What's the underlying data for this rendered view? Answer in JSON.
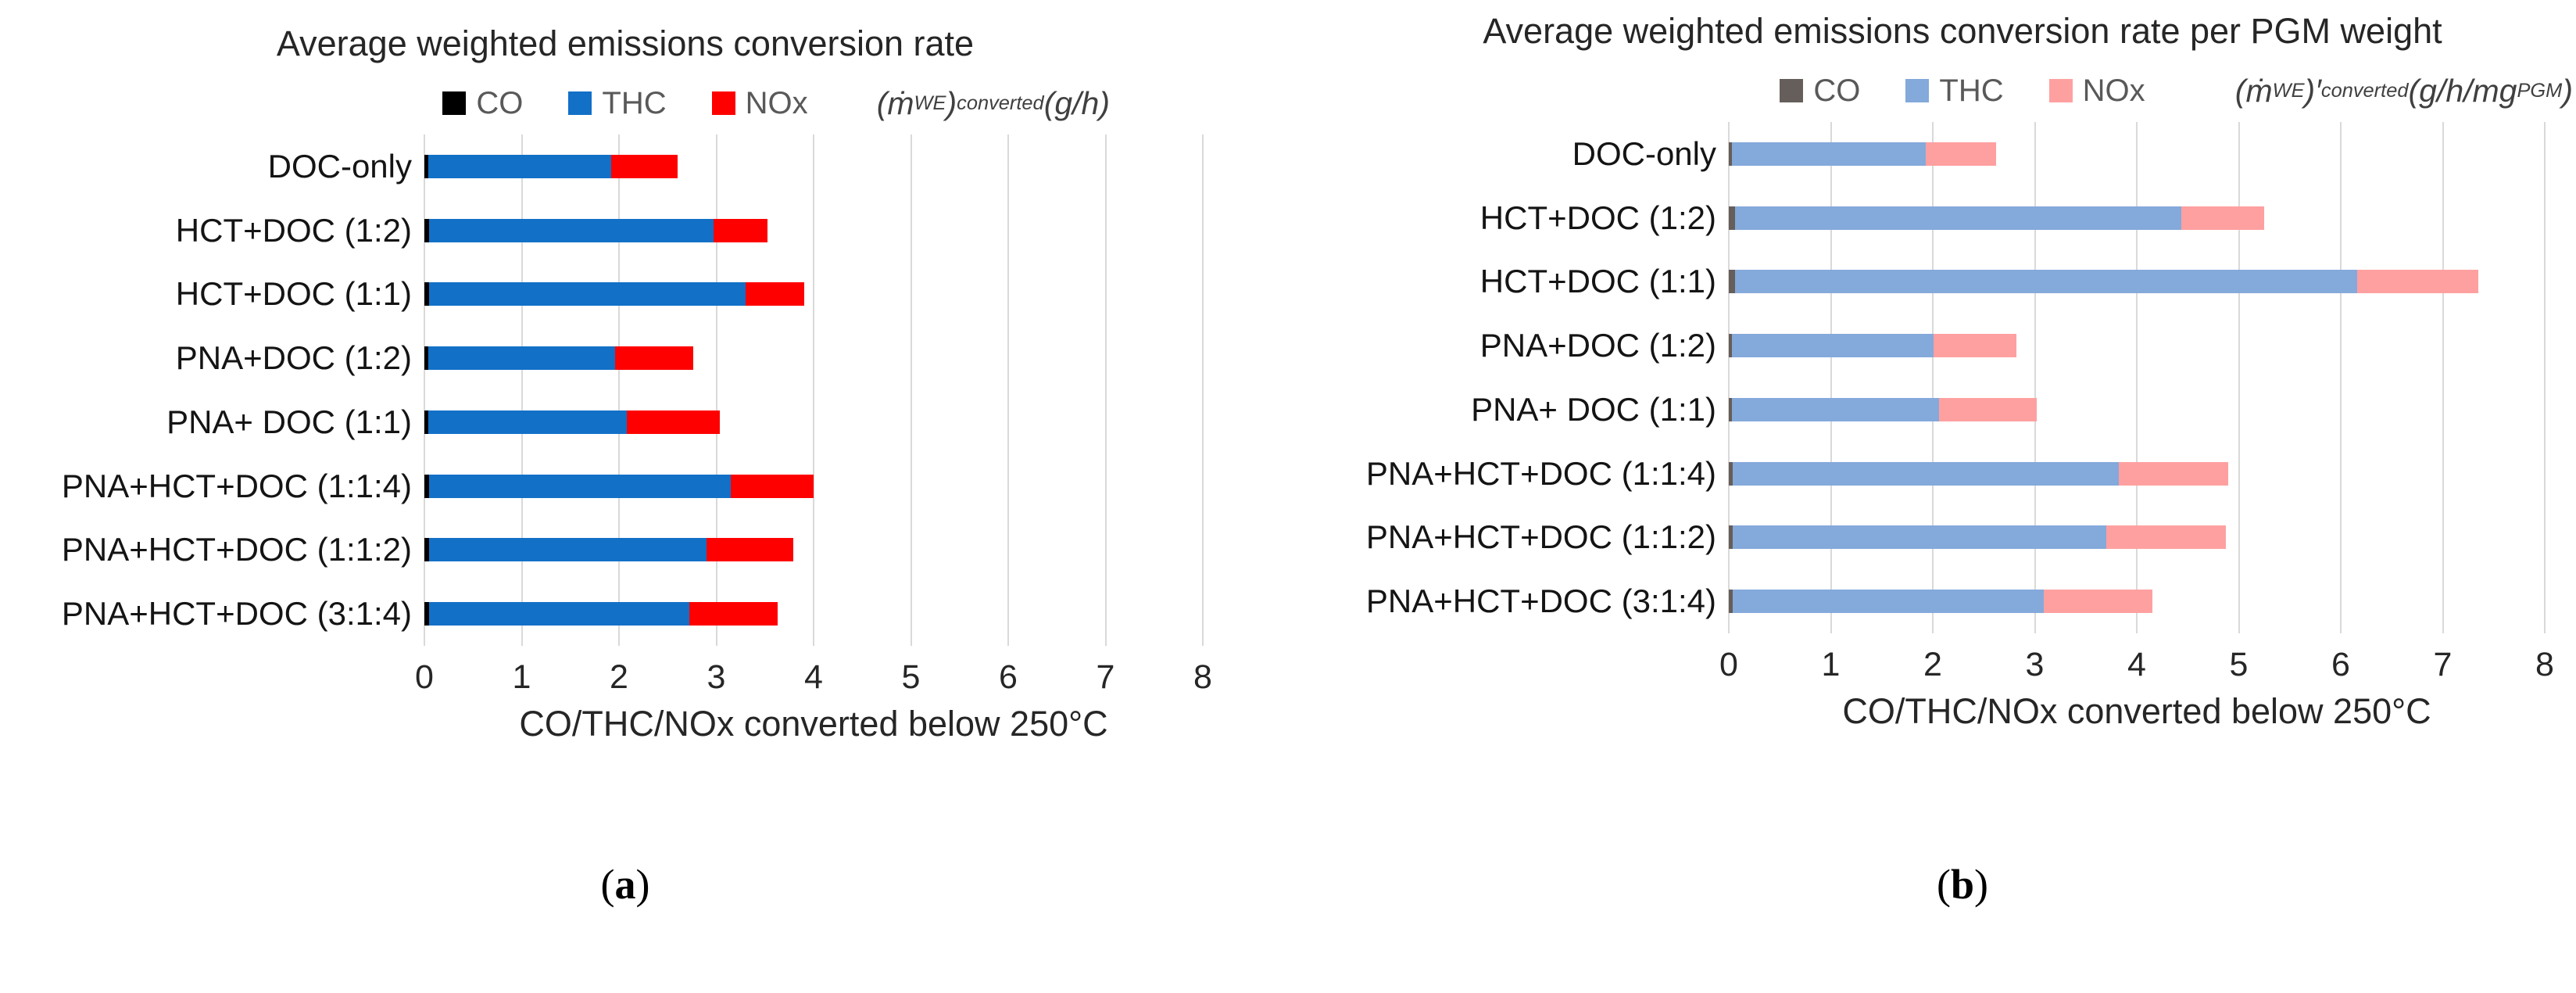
{
  "figure": {
    "captions": [
      {
        "open": "(",
        "letter": "a",
        "close": ")"
      },
      {
        "open": "(",
        "letter": "b",
        "close": ")"
      }
    ]
  },
  "charts": [
    {
      "title": "Average weighted emissions conversion rate",
      "legend": [
        {
          "label": "CO",
          "color": "#000000"
        },
        {
          "label": "THC",
          "color": "#1270c7"
        },
        {
          "label": "NOx",
          "color": "#ff0000"
        }
      ],
      "units_rich": [
        {
          "t": "("
        },
        {
          "t": "ṁ"
        },
        {
          "t": "WE",
          "sub": true
        },
        {
          "t": ")"
        },
        {
          "t": "converted",
          "sub": true
        },
        {
          "t": " (g/h)"
        }
      ],
      "units_plain": "(ṁWE)converted (g/h)",
      "xlabel": "CO/THC/NOx converted below 250°C",
      "chart_data": {
        "type": "bar",
        "orientation": "horizontal",
        "stacked": true,
        "title": "Average weighted emissions conversion rate",
        "categories": [
          "DOC-only",
          "HCT+DOC (1:2)",
          "HCT+DOC (1:1)",
          "PNA+DOC (1:2)",
          "PNA+ DOC (1:1)",
          "PNA+HCT+DOC (1:1:4)",
          "PNA+HCT+DOC (1:1:2)",
          "PNA+HCT+DOC (3:1:4)"
        ],
        "series": [
          {
            "name": "CO",
            "color": "#000000",
            "values": [
              0.04,
              0.05,
              0.05,
              0.04,
              0.04,
              0.05,
              0.05,
              0.05
            ]
          },
          {
            "name": "THC",
            "color": "#1270c7",
            "values": [
              1.88,
              2.92,
              3.25,
              1.92,
              2.04,
              3.1,
              2.85,
              2.67
            ]
          },
          {
            "name": "NOx",
            "color": "#ff0000",
            "values": [
              0.68,
              0.56,
              0.6,
              0.8,
              0.96,
              0.85,
              0.89,
              0.91
            ]
          }
        ],
        "xlabel": "CO/THC/NOx converted below 250°C",
        "units": "(g/h)",
        "xlim": [
          0,
          8
        ],
        "xticks": [
          0,
          1,
          2,
          3,
          4,
          5,
          6,
          7,
          8
        ],
        "grid": true,
        "legend_position": "top"
      }
    },
    {
      "title": "Average weighted emissions conversion rate per PGM weight",
      "legend": [
        {
          "label": "CO",
          "color": "#665e5a"
        },
        {
          "label": "THC",
          "color": "#84a9db"
        },
        {
          "label": "NOx",
          "color": "#ffa0a0"
        }
      ],
      "units_rich": [
        {
          "t": "("
        },
        {
          "t": "ṁ"
        },
        {
          "t": "WE",
          "sub": true
        },
        {
          "t": ")′"
        },
        {
          "t": "converted",
          "sub": true
        },
        {
          "t": " (g/h/mg"
        },
        {
          "t": "PGM",
          "sub": true
        },
        {
          "t": ")"
        }
      ],
      "units_plain": "(ṁWE)′converted (g/h/mgPGM)",
      "xlabel": "CO/THC/NOx converted below 250°C",
      "chart_data": {
        "type": "bar",
        "orientation": "horizontal",
        "stacked": true,
        "title": "Average weighted emissions conversion rate per PGM weight",
        "categories": [
          "DOC-only",
          "HCT+DOC (1:2)",
          "HCT+DOC (1:1)",
          "PNA+DOC (1:2)",
          "PNA+ DOC (1:1)",
          "PNA+HCT+DOC (1:1:4)",
          "PNA+HCT+DOC (1:1:2)",
          "PNA+HCT+DOC (3:1:4)"
        ],
        "series": [
          {
            "name": "CO",
            "color": "#665e5a",
            "values": [
              0.03,
              0.06,
              0.06,
              0.03,
              0.03,
              0.04,
              0.04,
              0.04
            ]
          },
          {
            "name": "THC",
            "color": "#84a9db",
            "values": [
              1.9,
              4.38,
              6.1,
              1.98,
              2.03,
              3.78,
              3.66,
              3.05
            ]
          },
          {
            "name": "NOx",
            "color": "#ffa0a0",
            "values": [
              0.69,
              0.81,
              1.19,
              0.81,
              0.96,
              1.08,
              1.17,
              1.06
            ]
          }
        ],
        "xlabel": "CO/THC/NOx converted below 250°C",
        "units": "(g/h/mgPGM)",
        "xlim": [
          0,
          8
        ],
        "xticks": [
          0,
          1,
          2,
          3,
          4,
          5,
          6,
          7,
          8
        ],
        "grid": true,
        "legend_position": "top"
      }
    }
  ]
}
